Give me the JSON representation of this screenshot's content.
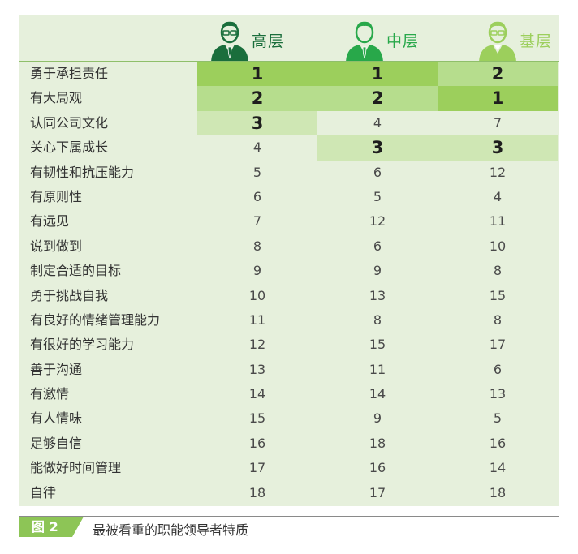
{
  "header": {
    "columns": [
      {
        "label": "高层",
        "color": "#1a6e3c",
        "icon": "senior-person-icon"
      },
      {
        "label": "中层",
        "color": "#28a84a",
        "icon": "middle-person-icon"
      },
      {
        "label": "基层",
        "color": "#9ccf5c",
        "icon": "junior-person-icon"
      }
    ]
  },
  "colors": {
    "panel": "#e6f0dc",
    "rank1": "#9ccf5c",
    "rank2": "#b6dd8d",
    "rank3": "#cfe7b4"
  },
  "rows": [
    {
      "name": "勇于承担责任",
      "v": [
        "1",
        "1",
        "2"
      ]
    },
    {
      "name": "有大局观",
      "v": [
        "2",
        "2",
        "1"
      ]
    },
    {
      "name": "认同公司文化",
      "v": [
        "3",
        "4",
        "7"
      ]
    },
    {
      "name": "关心下属成长",
      "v": [
        "4",
        "3",
        "3"
      ]
    },
    {
      "name": "有韧性和抗压能力",
      "v": [
        "5",
        "6",
        "12"
      ]
    },
    {
      "name": "有原则性",
      "v": [
        "6",
        "5",
        "4"
      ]
    },
    {
      "name": "有远见",
      "v": [
        "7",
        "12",
        "11"
      ]
    },
    {
      "name": "说到做到",
      "v": [
        "8",
        "6",
        "10"
      ]
    },
    {
      "name": "制定合适的目标",
      "v": [
        "9",
        "9",
        "8"
      ]
    },
    {
      "name": "勇于挑战自我",
      "v": [
        "10",
        "13",
        "15"
      ]
    },
    {
      "name": "有良好的情绪管理能力",
      "v": [
        "11",
        "8",
        "8"
      ]
    },
    {
      "name": "有很好的学习能力",
      "v": [
        "12",
        "15",
        "17"
      ]
    },
    {
      "name": "善于沟通",
      "v": [
        "13",
        "11",
        "6"
      ]
    },
    {
      "name": "有激情",
      "v": [
        "14",
        "14",
        "13"
      ]
    },
    {
      "name": "有人情味",
      "v": [
        "15",
        "9",
        "5"
      ]
    },
    {
      "name": "足够自信",
      "v": [
        "16",
        "18",
        "16"
      ]
    },
    {
      "name": "能做好时间管理",
      "v": [
        "17",
        "16",
        "14"
      ]
    },
    {
      "name": "自律",
      "v": [
        "18",
        "17",
        "18"
      ]
    }
  ],
  "caption": {
    "figure_label": "图 2",
    "title": "最被看重的职能领导者特质"
  }
}
